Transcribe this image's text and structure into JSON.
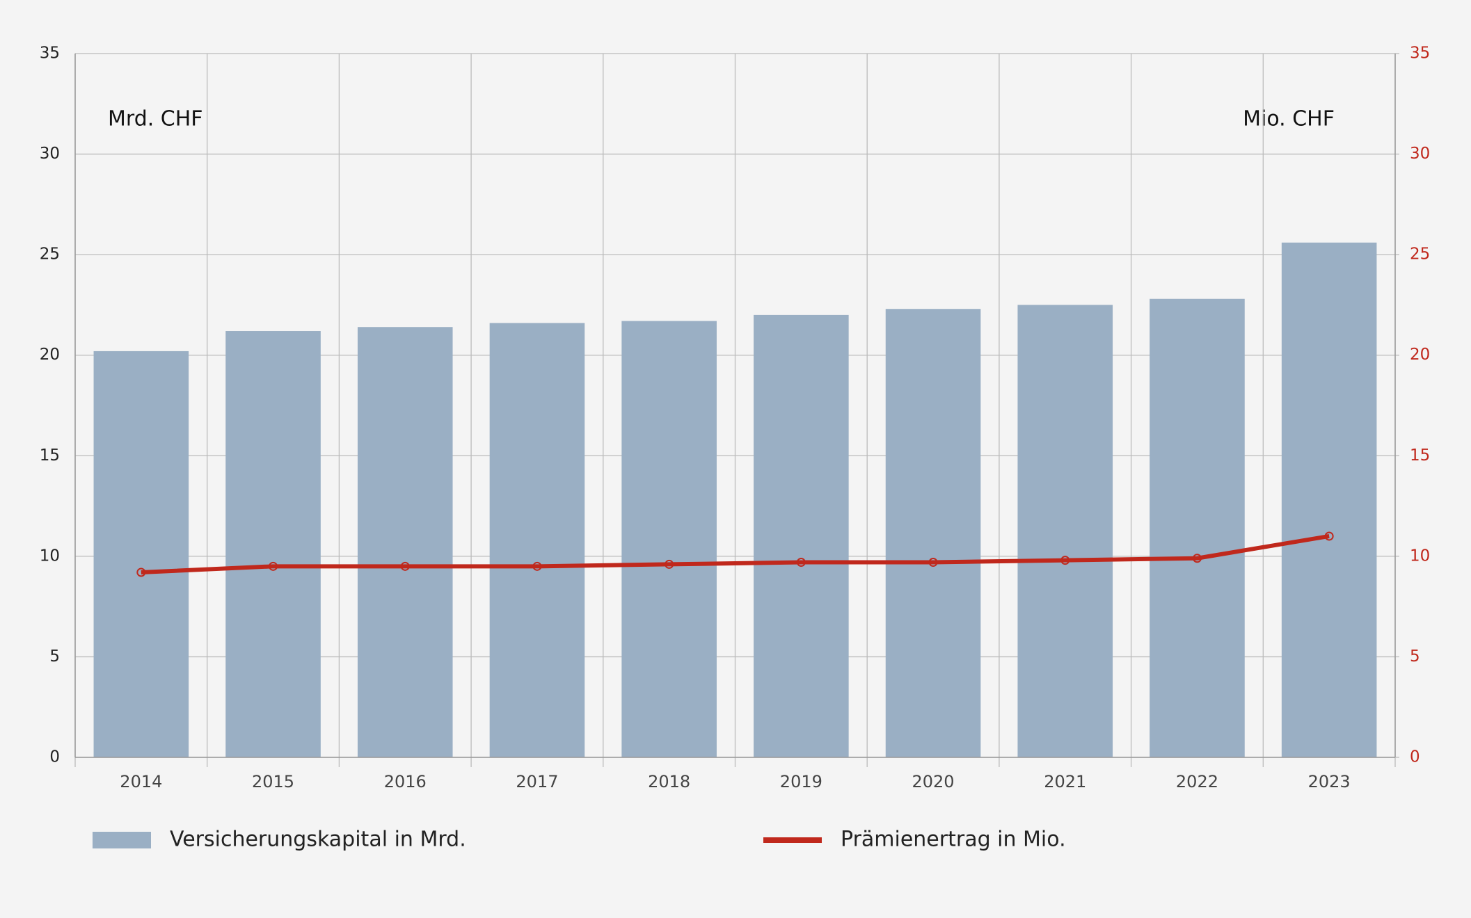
{
  "chart_data": {
    "type": "bar",
    "y_label": "Mrd. CHF",
    "y2_label": "Mio. CHF",
    "categories": [
      "2014",
      "2015",
      "2016",
      "2017",
      "2018",
      "2019",
      "2020",
      "2021",
      "2022",
      "2023"
    ],
    "series": [
      {
        "name": "Versicherungskapital in Mrd.",
        "type": "bar",
        "color": "#9aafc4",
        "values": [
          20.2,
          21.2,
          21.4,
          21.6,
          21.7,
          22.0,
          22.3,
          22.5,
          22.8,
          25.6
        ]
      },
      {
        "name": "Prämienertrag in Mio.",
        "type": "line",
        "axis": "y2",
        "color": "#c0281c",
        "values": [
          9.2,
          9.5,
          9.5,
          9.5,
          9.6,
          9.7,
          9.7,
          9.8,
          9.9,
          11.0
        ]
      }
    ],
    "ylim": [
      0,
      35
    ],
    "yticks": [
      0,
      5,
      10,
      15,
      20,
      25,
      30,
      35
    ],
    "y2lim": [
      0,
      35
    ],
    "y2ticks": [
      0,
      5,
      10,
      15,
      20,
      25,
      30,
      35
    ],
    "grid": true
  }
}
